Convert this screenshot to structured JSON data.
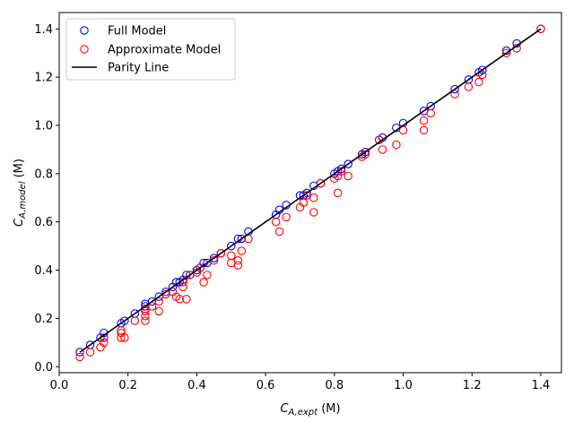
{
  "chart_data": {
    "type": "scatter",
    "xlabel": {
      "base": "C",
      "sub": "A,expt",
      "unit": " (M)"
    },
    "ylabel": {
      "base": "C",
      "sub": "A,model",
      "unit": " (M)"
    },
    "xlim": [
      0.0,
      1.46
    ],
    "ylim": [
      -0.025,
      1.468
    ],
    "x_ticks": [
      0.0,
      0.2,
      0.4,
      0.6,
      0.8,
      1.0,
      1.2,
      1.4
    ],
    "y_ticks": [
      0.0,
      0.2,
      0.4,
      0.6,
      0.8,
      1.0,
      1.2,
      1.4
    ],
    "x_tick_labels": [
      "0.0",
      "0.2",
      "0.4",
      "0.6",
      "0.8",
      "1.0",
      "1.2",
      "1.4"
    ],
    "y_tick_labels": [
      "0.0",
      "0.2",
      "0.4",
      "0.6",
      "0.8",
      "1.0",
      "1.2",
      "1.4"
    ],
    "grid": false,
    "legend_position": "top-left",
    "legend": [
      "Full Model",
      "Approximate Model",
      "Parity Line"
    ],
    "colors": {
      "full": "#0000ff",
      "approx": "#ff0000",
      "parity": "#000000"
    },
    "series": [
      {
        "name": "Full Model",
        "marker": "hollow-circle",
        "x": [
          0.06,
          0.09,
          0.12,
          0.13,
          0.13,
          0.18,
          0.19,
          0.22,
          0.25,
          0.25,
          0.27,
          0.29,
          0.31,
          0.33,
          0.34,
          0.35,
          0.36,
          0.37,
          0.38,
          0.4,
          0.41,
          0.42,
          0.43,
          0.45,
          0.47,
          0.5,
          0.52,
          0.53,
          0.55,
          0.63,
          0.64,
          0.66,
          0.7,
          0.71,
          0.72,
          0.74,
          0.76,
          0.8,
          0.81,
          0.82,
          0.84,
          0.88,
          0.89,
          0.93,
          0.94,
          0.98,
          1.0,
          1.06,
          1.08,
          1.15,
          1.19,
          1.22,
          1.23,
          1.3,
          1.33,
          1.4
        ],
        "y": [
          0.06,
          0.09,
          0.12,
          0.14,
          0.12,
          0.18,
          0.19,
          0.22,
          0.26,
          0.25,
          0.27,
          0.29,
          0.31,
          0.33,
          0.35,
          0.35,
          0.36,
          0.38,
          0.38,
          0.4,
          0.41,
          0.43,
          0.43,
          0.45,
          0.47,
          0.5,
          0.53,
          0.53,
          0.56,
          0.63,
          0.65,
          0.67,
          0.71,
          0.71,
          0.72,
          0.75,
          0.76,
          0.8,
          0.81,
          0.82,
          0.84,
          0.88,
          0.89,
          0.94,
          0.95,
          0.99,
          1.01,
          1.06,
          1.08,
          1.15,
          1.19,
          1.22,
          1.23,
          1.31,
          1.34,
          1.4
        ]
      },
      {
        "name": "Approximate Model",
        "marker": "hollow-circle",
        "x": [
          0.06,
          0.09,
          0.12,
          0.13,
          0.13,
          0.18,
          0.18,
          0.18,
          0.19,
          0.22,
          0.25,
          0.25,
          0.25,
          0.25,
          0.27,
          0.29,
          0.29,
          0.31,
          0.33,
          0.34,
          0.35,
          0.36,
          0.36,
          0.37,
          0.38,
          0.4,
          0.41,
          0.42,
          0.43,
          0.45,
          0.47,
          0.5,
          0.5,
          0.52,
          0.52,
          0.53,
          0.55,
          0.63,
          0.64,
          0.66,
          0.7,
          0.71,
          0.72,
          0.74,
          0.74,
          0.76,
          0.8,
          0.81,
          0.81,
          0.82,
          0.84,
          0.88,
          0.89,
          0.93,
          0.94,
          0.98,
          1.0,
          1.06,
          1.06,
          1.08,
          1.15,
          1.19,
          1.22,
          1.23,
          1.3,
          1.33,
          1.4
        ],
        "y": [
          0.04,
          0.06,
          0.08,
          0.1,
          0.12,
          0.12,
          0.14,
          0.15,
          0.12,
          0.19,
          0.19,
          0.21,
          0.23,
          0.24,
          0.25,
          0.23,
          0.27,
          0.3,
          0.31,
          0.29,
          0.28,
          0.33,
          0.35,
          0.28,
          0.38,
          0.39,
          0.41,
          0.35,
          0.38,
          0.44,
          0.47,
          0.43,
          0.46,
          0.42,
          0.44,
          0.48,
          0.53,
          0.6,
          0.56,
          0.62,
          0.66,
          0.68,
          0.71,
          0.64,
          0.7,
          0.76,
          0.78,
          0.72,
          0.79,
          0.81,
          0.79,
          0.87,
          0.88,
          0.94,
          0.9,
          0.92,
          0.98,
          0.98,
          1.02,
          1.05,
          1.13,
          1.16,
          1.18,
          1.21,
          1.3,
          1.32,
          1.4
        ]
      },
      {
        "name": "Parity Line",
        "marker": "line",
        "x": [
          0.06,
          1.4
        ],
        "y": [
          0.06,
          1.4
        ]
      }
    ]
  }
}
